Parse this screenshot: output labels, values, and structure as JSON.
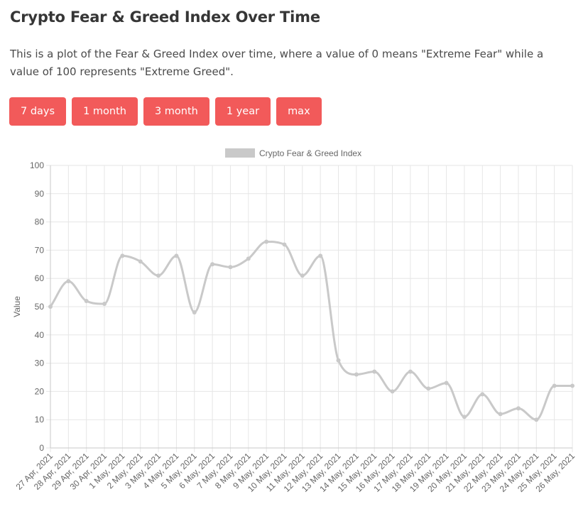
{
  "page": {
    "title": "Crypto Fear & Greed Index Over Time",
    "description": "This is a plot of the Fear & Greed Index over time, where a value of 0 means \"Extreme Fear\" while a value of 100 represents \"Extreme Greed\"."
  },
  "buttons": [
    {
      "label": "7 days"
    },
    {
      "label": "1 month"
    },
    {
      "label": "3 month"
    },
    {
      "label": "1 year"
    },
    {
      "label": "max"
    }
  ],
  "colors": {
    "button_bg": "#f25a5a",
    "series_line": "#c9c9c9",
    "grid": "#e6e6e6"
  },
  "chart_data": {
    "type": "line",
    "legend_position": "top",
    "grid": true,
    "xlabel": "",
    "ylabel": "Value",
    "ylim": [
      0,
      100
    ],
    "yticks": [
      0,
      10,
      20,
      30,
      40,
      50,
      60,
      70,
      80,
      90,
      100
    ],
    "categories": [
      "27 Apr, 2021",
      "28 Apr, 2021",
      "29 Apr, 2021",
      "30 Apr, 2021",
      "1 May, 2021",
      "2 May, 2021",
      "3 May, 2021",
      "4 May, 2021",
      "5 May, 2021",
      "6 May, 2021",
      "7 May, 2021",
      "8 May, 2021",
      "9 May, 2021",
      "10 May, 2021",
      "11 May, 2021",
      "12 May, 2021",
      "13 May, 2021",
      "14 May, 2021",
      "15 May, 2021",
      "16 May, 2021",
      "17 May, 2021",
      "18 May, 2021",
      "19 May, 2021",
      "20 May, 2021",
      "21 May, 2021",
      "22 May, 2021",
      "23 May, 2021",
      "24 May, 2021",
      "25 May, 2021",
      "26 May, 2021"
    ],
    "series": [
      {
        "name": "Crypto Fear & Greed Index",
        "values": [
          50,
          59,
          52,
          51,
          68,
          66,
          61,
          68,
          48,
          65,
          64,
          67,
          73,
          72,
          61,
          68,
          31,
          26,
          27,
          20,
          27,
          21,
          23,
          11,
          19,
          12,
          14,
          10,
          22,
          22
        ]
      }
    ]
  }
}
